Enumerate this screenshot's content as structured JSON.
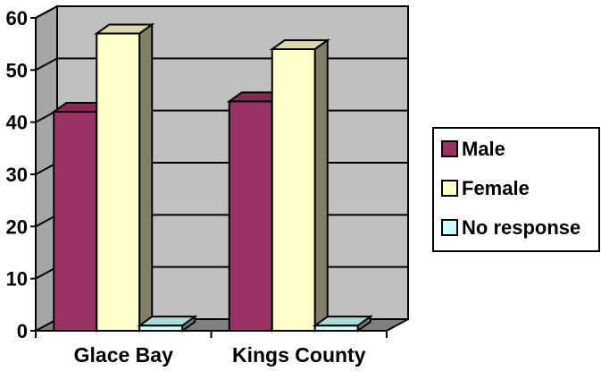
{
  "chart_data": {
    "type": "bar",
    "style": "3d-clustered-column",
    "categories": [
      "Glace Bay",
      "Kings County"
    ],
    "series": [
      {
        "name": "Male",
        "values": [
          42,
          44
        ],
        "color": "#993366"
      },
      {
        "name": "Female",
        "values": [
          57,
          54
        ],
        "color": "#FFFFCC"
      },
      {
        "name": "No response",
        "values": [
          1,
          1
        ],
        "color": "#CCFFFF"
      }
    ],
    "ylim": [
      0,
      60
    ],
    "yticks": [
      0,
      10,
      20,
      30,
      40,
      50,
      60
    ],
    "grid": true,
    "wall_color": "#C0C0C0",
    "legend_position": "right"
  }
}
